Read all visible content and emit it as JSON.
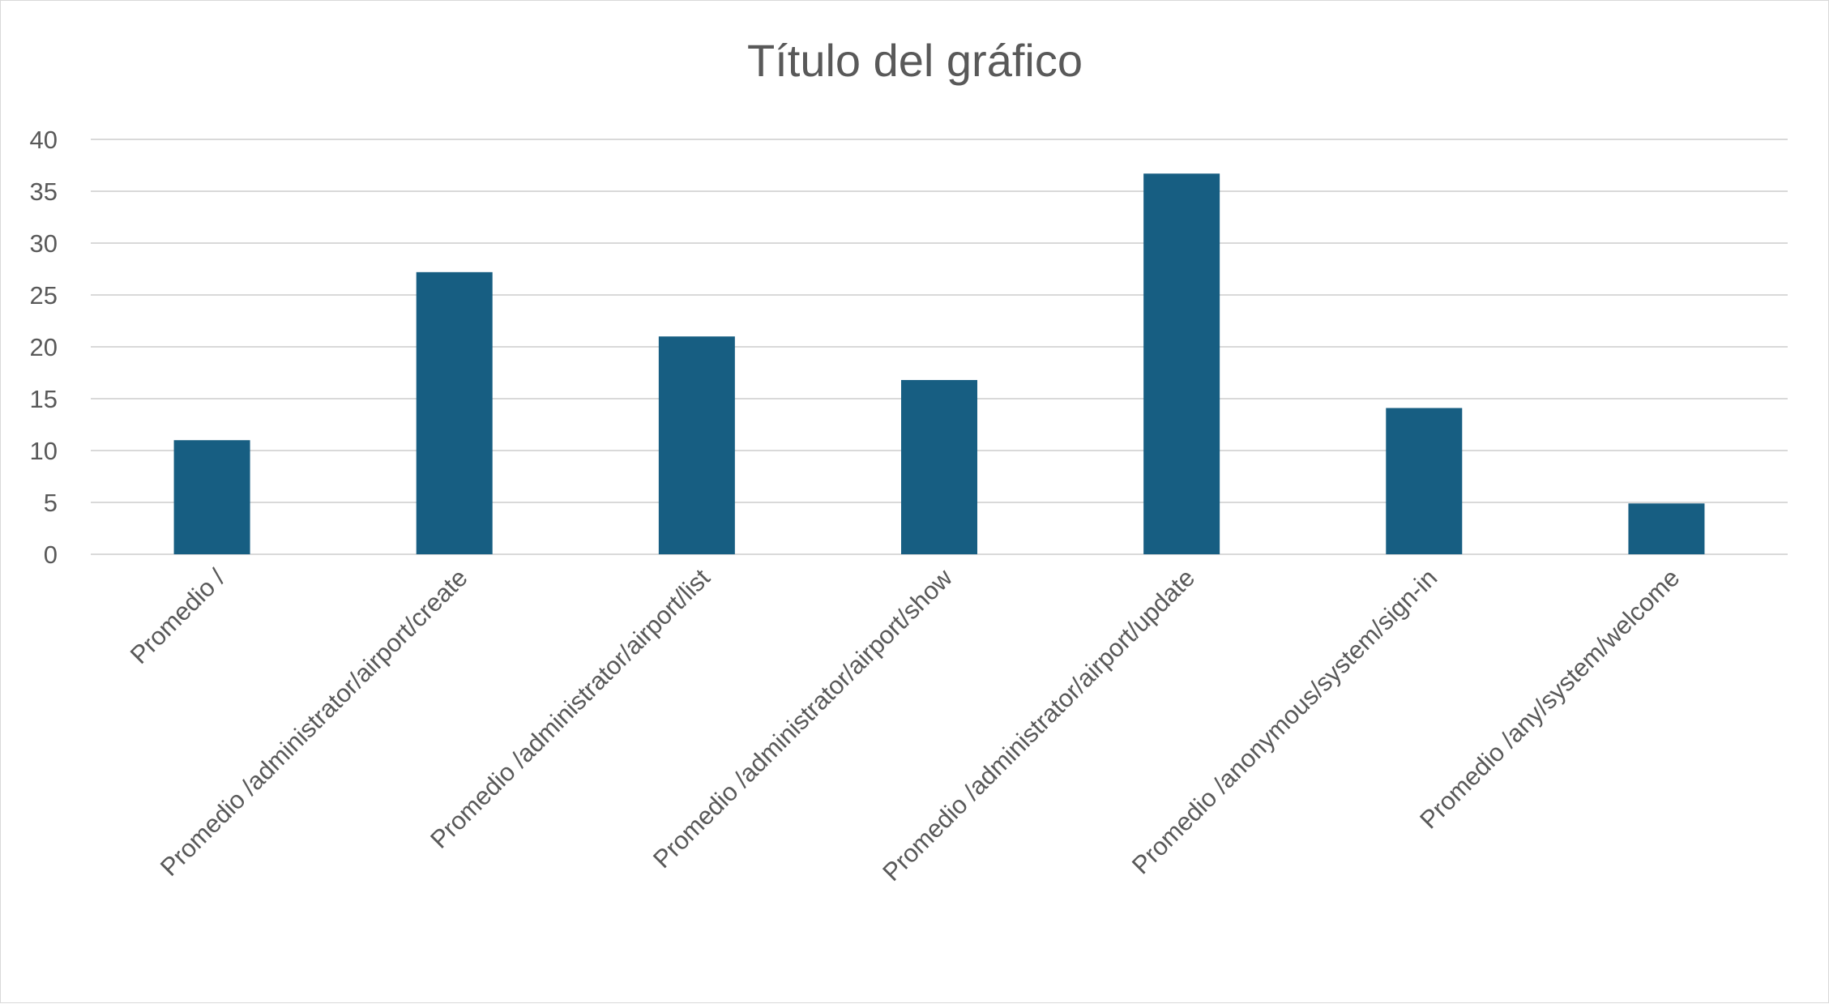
{
  "chart_data": {
    "type": "bar",
    "title": "Título del gráfico",
    "xlabel": "",
    "ylabel": "",
    "categories": [
      "Promedio /",
      "Promedio /administrator/airport/create",
      "Promedio /administrator/airport/list",
      "Promedio /administrator/airport/show",
      "Promedio /administrator/airport/update",
      "Promedio /anonymous/system/sign-in",
      "Promedio /any/system/welcome"
    ],
    "values": [
      11.0,
      27.2,
      21.0,
      16.8,
      36.7,
      14.1,
      4.9
    ],
    "ylim": [
      0,
      40
    ],
    "yticks": [
      0,
      5,
      10,
      15,
      20,
      25,
      30,
      35,
      40
    ],
    "grid": true,
    "legend": "none",
    "colors": {
      "bar": "#175E82",
      "gridline": "#D9D9D9",
      "text": "#595959"
    }
  }
}
